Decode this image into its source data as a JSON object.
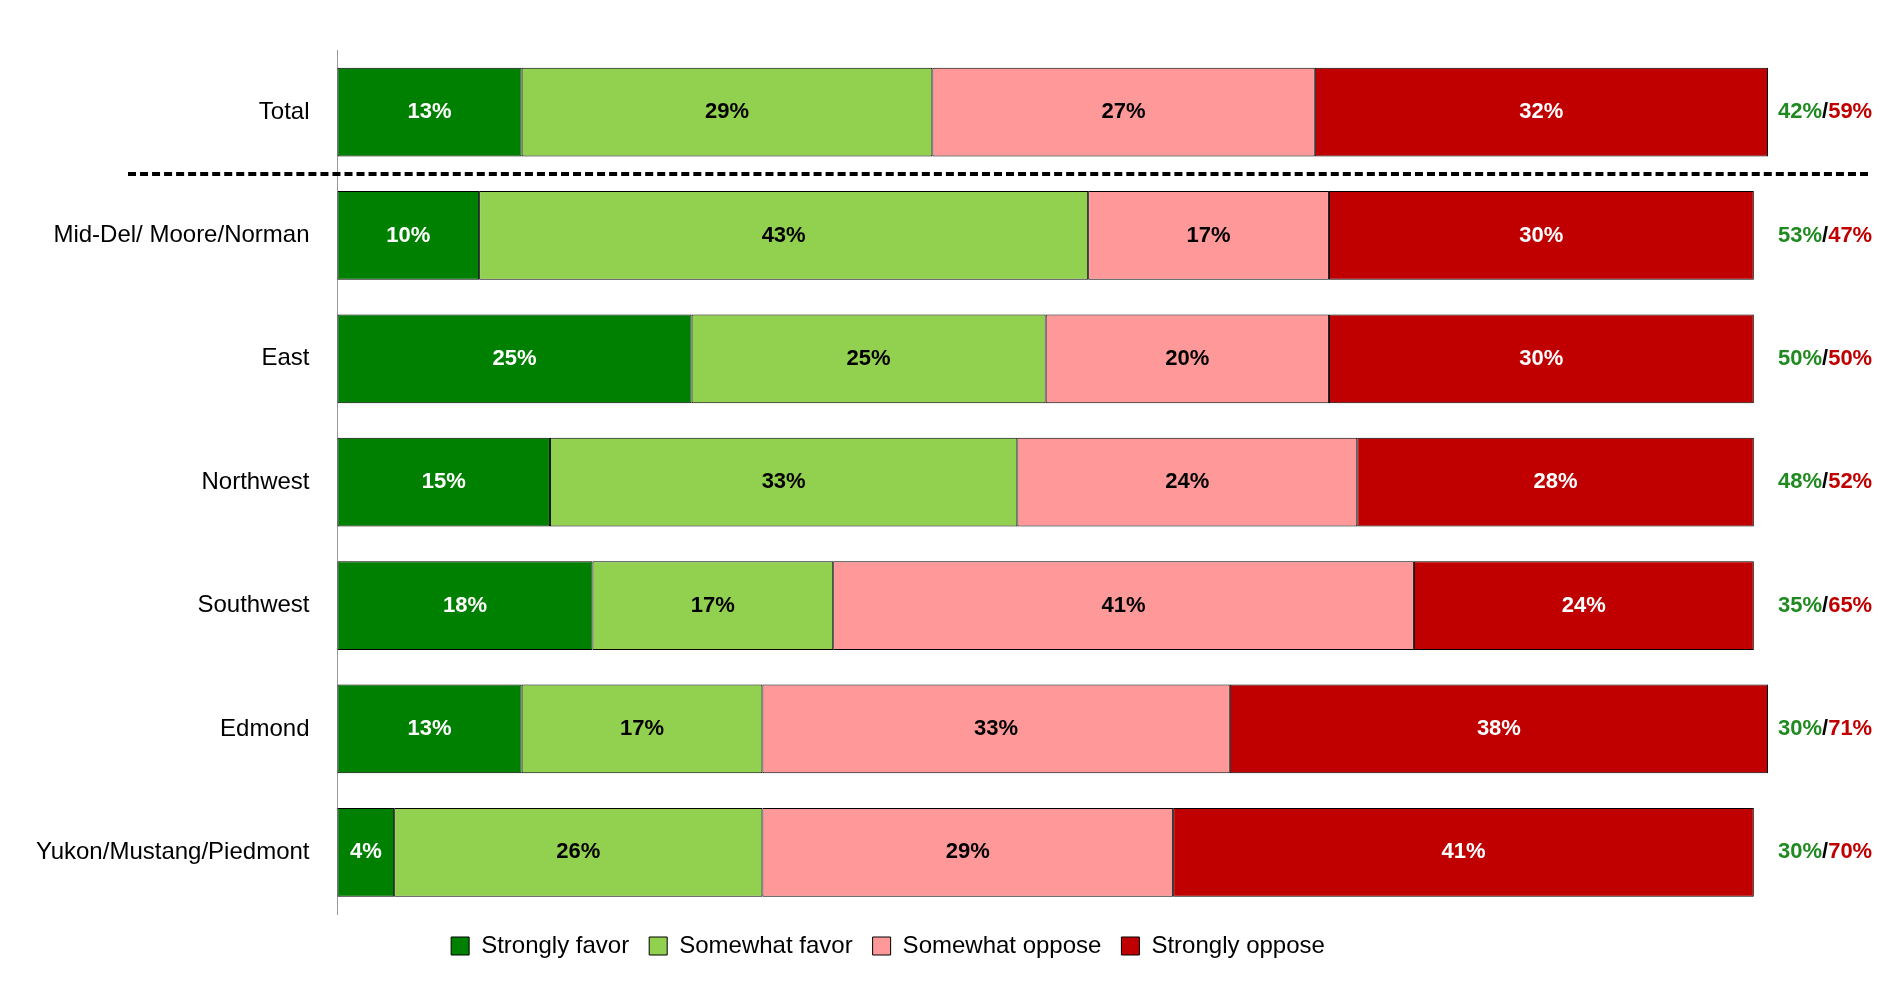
{
  "chart_data": {
    "type": "bar",
    "orientation": "horizontal",
    "stacked": true,
    "legend": "bottom",
    "tick_labels": "y",
    "categories": [
      "Total",
      "Mid-Del/ Moore/Norman",
      "East",
      "Northwest",
      "Southwest",
      "Edmond",
      "Yukon/Mustang/Piedmont"
    ],
    "series": [
      {
        "name": "Strongly favor",
        "color": "#008000",
        "values": [
          13,
          10,
          25,
          15,
          18,
          13,
          4
        ],
        "value_labels": [
          "13%",
          "10%",
          "25%",
          "15%",
          "18%",
          "13%",
          "4%"
        ]
      },
      {
        "name": "Somewhat favor",
        "color": "#92d050",
        "values": [
          29,
          43,
          25,
          33,
          17,
          17,
          26
        ],
        "value_labels": [
          "29%",
          "43%",
          "25%",
          "33%",
          "17%",
          "17%",
          "26%"
        ]
      },
      {
        "name": "Somewhat oppose",
        "color": "#ff9999",
        "values": [
          27,
          17,
          20,
          24,
          41,
          33,
          29
        ],
        "value_labels": [
          "27%",
          "17%",
          "20%",
          "24%",
          "41%",
          "33%",
          "29%"
        ]
      },
      {
        "name": "Strongly oppose",
        "color": "#c00000",
        "values": [
          32,
          30,
          30,
          28,
          24,
          38,
          41
        ],
        "value_labels": [
          "32%",
          "30%",
          "30%",
          "28%",
          "24%",
          "38%",
          "41%"
        ]
      }
    ],
    "annotations": [
      "42%/59%",
      "53%/47%",
      "50%/50%",
      "48%/52%",
      "35%/65%",
      "30%/71%",
      "30%/70%"
    ]
  }
}
